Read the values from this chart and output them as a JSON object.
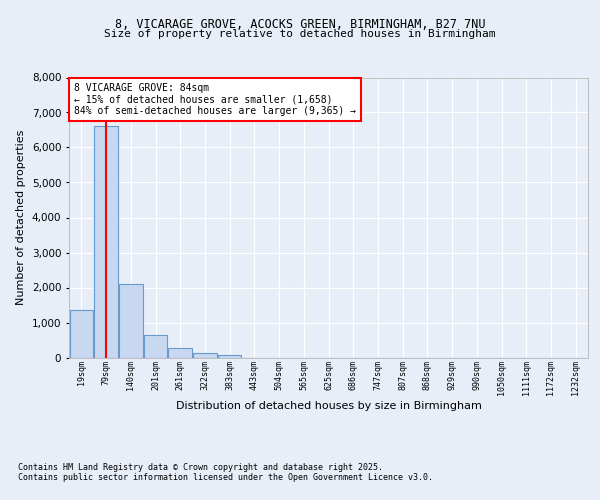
{
  "title1": "8, VICARAGE GROVE, ACOCKS GREEN, BIRMINGHAM, B27 7NU",
  "title2": "Size of property relative to detached houses in Birmingham",
  "xlabel": "Distribution of detached houses by size in Birmingham",
  "ylabel": "Number of detached properties",
  "footnote1": "Contains HM Land Registry data © Crown copyright and database right 2025.",
  "footnote2": "Contains public sector information licensed under the Open Government Licence v3.0.",
  "annotation_title": "8 VICARAGE GROVE: 84sqm",
  "annotation_line1": "← 15% of detached houses are smaller (1,658)",
  "annotation_line2": "84% of semi-detached houses are larger (9,365) →",
  "bar_categories": [
    "19sqm",
    "79sqm",
    "140sqm",
    "201sqm",
    "261sqm",
    "322sqm",
    "383sqm",
    "443sqm",
    "504sqm",
    "565sqm",
    "625sqm",
    "686sqm",
    "747sqm",
    "807sqm",
    "868sqm",
    "929sqm",
    "990sqm",
    "1050sqm",
    "1111sqm",
    "1172sqm",
    "1232sqm"
  ],
  "bar_values": [
    1350,
    6600,
    2100,
    650,
    270,
    130,
    80,
    0,
    0,
    0,
    0,
    0,
    0,
    0,
    0,
    0,
    0,
    0,
    0,
    0,
    0
  ],
  "bar_color": "#c8d8f0",
  "bar_edge_color": "#6699cc",
  "vline_x": 1.0,
  "vline_color": "red",
  "ylim": [
    0,
    8000
  ],
  "yticks": [
    0,
    1000,
    2000,
    3000,
    4000,
    5000,
    6000,
    7000,
    8000
  ],
  "bg_color": "#e8eef8",
  "plot_bg_color": "#e8eef8",
  "grid_color": "#ffffff"
}
